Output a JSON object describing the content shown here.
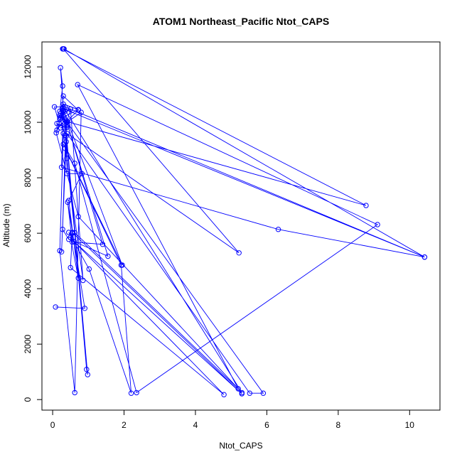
{
  "chart_data": {
    "type": "line",
    "title": "ATOM1 Northeast_Pacific Ntot_CAPS",
    "xlabel": "Ntot_CAPS",
    "ylabel": "Altitude (m)",
    "xlim": [
      -0.3,
      10.85
    ],
    "ylim": [
      -380,
      12900
    ],
    "xticks": [
      0,
      2,
      4,
      6,
      8,
      10
    ],
    "yticks": [
      0,
      2000,
      4000,
      6000,
      8000,
      10000,
      12000
    ],
    "grid": false,
    "legend": "none",
    "markers": "open-circle",
    "color": "#0000ff",
    "points": [
      {
        "x": 0.08,
        "y": 3340
      },
      {
        "x": 0.9,
        "y": 3290
      },
      {
        "x": 0.42,
        "y": 7120
      },
      {
        "x": 0.55,
        "y": 5680
      },
      {
        "x": 1.4,
        "y": 5600
      },
      {
        "x": 0.42,
        "y": 9910
      },
      {
        "x": 0.22,
        "y": 9800
      },
      {
        "x": 0.35,
        "y": 9800
      },
      {
        "x": 0.5,
        "y": 10480
      },
      {
        "x": 0.2,
        "y": 10400
      },
      {
        "x": 0.28,
        "y": 11310
      },
      {
        "x": 0.22,
        "y": 11970
      },
      {
        "x": 0.4,
        "y": 8700
      },
      {
        "x": 0.62,
        "y": 6020
      },
      {
        "x": 5.2,
        "y": 390
      },
      {
        "x": 0.7,
        "y": 11360
      },
      {
        "x": 9.1,
        "y": 6310
      },
      {
        "x": 2.35,
        "y": 250
      },
      {
        "x": 0.62,
        "y": 8520
      },
      {
        "x": 0.3,
        "y": 9210
      },
      {
        "x": 1.95,
        "y": 4850
      },
      {
        "x": 0.28,
        "y": 10500
      },
      {
        "x": 10.42,
        "y": 5140
      },
      {
        "x": 6.32,
        "y": 6140
      },
      {
        "x": 0.25,
        "y": 8380
      },
      {
        "x": 0.3,
        "y": 10550
      },
      {
        "x": 5.3,
        "y": 250
      },
      {
        "x": 0.72,
        "y": 6600
      },
      {
        "x": 0.1,
        "y": 9620
      },
      {
        "x": 0.25,
        "y": 10230
      },
      {
        "x": 0.3,
        "y": 10950
      },
      {
        "x": 0.72,
        "y": 10440
      },
      {
        "x": 0.38,
        "y": 10020
      },
      {
        "x": 0.4,
        "y": 8150
      },
      {
        "x": 0.82,
        "y": 8150
      },
      {
        "x": 0.45,
        "y": 7180
      },
      {
        "x": 0.72,
        "y": 4380
      },
      {
        "x": 0.5,
        "y": 5850
      },
      {
        "x": 0.6,
        "y": 5700
      },
      {
        "x": 5.3,
        "y": 210
      },
      {
        "x": 0.55,
        "y": 6030
      },
      {
        "x": 0.55,
        "y": 6000
      },
      {
        "x": 0.5,
        "y": 4760
      },
      {
        "x": 4.8,
        "y": 180
      },
      {
        "x": 0.6,
        "y": 5700
      },
      {
        "x": 0.45,
        "y": 6030
      },
      {
        "x": 1.02,
        "y": 4710
      },
      {
        "x": 2.2,
        "y": 230
      },
      {
        "x": 1.92,
        "y": 4850
      },
      {
        "x": 0.35,
        "y": 9060
      },
      {
        "x": 0.28,
        "y": 6140
      },
      {
        "x": 0.45,
        "y": 5780
      },
      {
        "x": 1.55,
        "y": 5170
      },
      {
        "x": 0.4,
        "y": 10000
      },
      {
        "x": 0.8,
        "y": 10360
      },
      {
        "x": 0.62,
        "y": 250
      },
      {
        "x": 0.2,
        "y": 5370
      },
      {
        "x": 0.3,
        "y": 9600
      },
      {
        "x": 0.85,
        "y": 4300
      },
      {
        "x": 0.5,
        "y": 10480
      },
      {
        "x": 0.2,
        "y": 10250
      },
      {
        "x": 0.42,
        "y": 10020
      },
      {
        "x": 8.78,
        "y": 7000
      },
      {
        "x": 0.28,
        "y": 12650
      },
      {
        "x": 0.32,
        "y": 12650
      },
      {
        "x": 10.42,
        "y": 5140
      },
      {
        "x": 0.35,
        "y": 10560
      },
      {
        "x": 0.05,
        "y": 10560
      },
      {
        "x": 0.18,
        "y": 9980
      },
      {
        "x": 0.3,
        "y": 10400
      },
      {
        "x": 0.28,
        "y": 10430
      },
      {
        "x": 0.3,
        "y": 10010
      },
      {
        "x": 0.12,
        "y": 9720
      },
      {
        "x": 0.12,
        "y": 9960
      },
      {
        "x": 0.4,
        "y": 9820
      },
      {
        "x": 0.32,
        "y": 10200
      },
      {
        "x": 0.22,
        "y": 10180
      },
      {
        "x": 0.35,
        "y": 10400
      },
      {
        "x": 0.22,
        "y": 10310
      },
      {
        "x": 0.3,
        "y": 10660
      },
      {
        "x": 0.72,
        "y": 10460
      },
      {
        "x": 0.2,
        "y": 10120
      },
      {
        "x": 0.35,
        "y": 9530
      },
      {
        "x": 0.38,
        "y": 9300
      },
      {
        "x": 0.25,
        "y": 5330
      },
      {
        "x": 0.38,
        "y": 9500
      },
      {
        "x": 0.95,
        "y": 1090
      },
      {
        "x": 0.98,
        "y": 900
      },
      {
        "x": 0.35,
        "y": 10100
      },
      {
        "x": 5.9,
        "y": 230
      },
      {
        "x": 5.52,
        "y": 230
      },
      {
        "x": 0.4,
        "y": 9600
      },
      {
        "x": 5.22,
        "y": 5290
      },
      {
        "x": 0.3,
        "y": 12650
      }
    ]
  }
}
